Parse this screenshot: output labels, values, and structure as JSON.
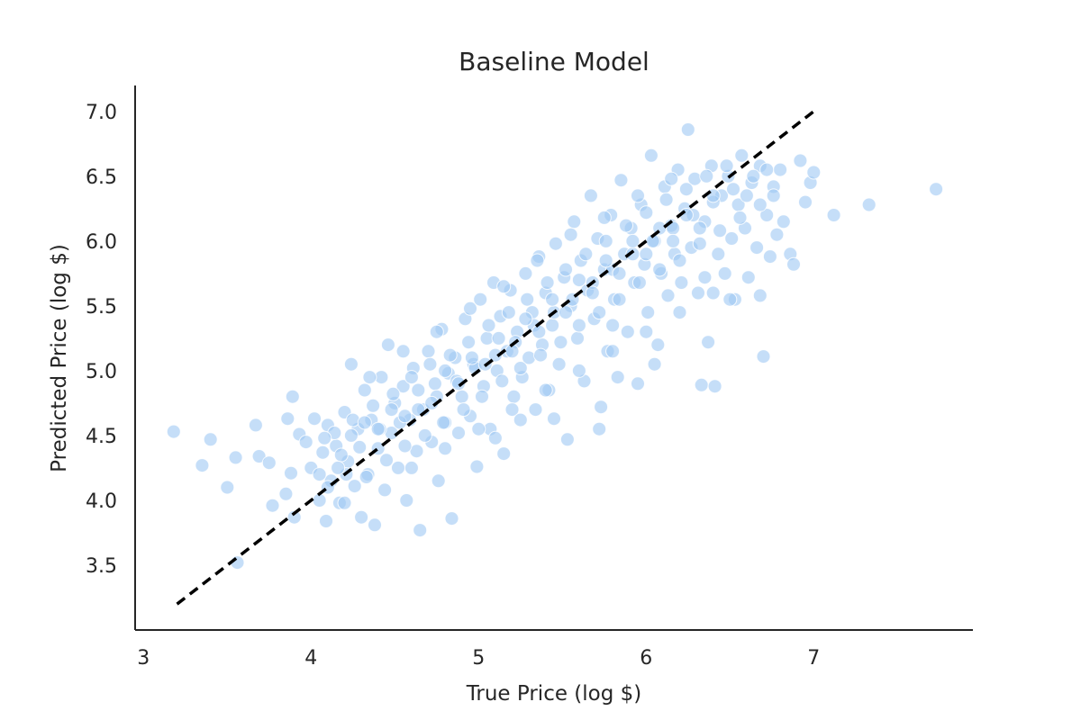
{
  "chart_data": {
    "type": "scatter",
    "title": "Baseline Model",
    "xlabel": "True Price (log $)",
    "ylabel": "Predicted Price (log $)",
    "xlim": [
      2.95,
      7.95
    ],
    "ylim": [
      3.0,
      7.2
    ],
    "xticks": [
      3,
      4,
      5,
      6,
      7
    ],
    "xtick_labels": [
      "3",
      "4",
      "5",
      "6",
      "7"
    ],
    "yticks": [
      3.5,
      4.0,
      4.5,
      5.0,
      5.5,
      6.0,
      6.5,
      7.0
    ],
    "ytick_labels": [
      "3.5",
      "4.0",
      "4.5",
      "5.0",
      "5.5",
      "6.0",
      "6.5",
      "7.0"
    ],
    "grid": false,
    "reference_line": {
      "style": "dashed",
      "color": "#000000",
      "x": [
        3.2,
        7.0
      ],
      "y": [
        3.2,
        7.0
      ]
    },
    "series": [
      {
        "color": "#9fc8f4",
        "points": [
          [
            3.18,
            4.53
          ],
          [
            3.35,
            4.27
          ],
          [
            3.4,
            4.47
          ],
          [
            3.5,
            4.1
          ],
          [
            3.55,
            4.33
          ],
          [
            3.56,
            3.52
          ],
          [
            3.67,
            4.58
          ],
          [
            3.69,
            4.34
          ],
          [
            3.75,
            4.29
          ],
          [
            3.77,
            3.96
          ],
          [
            3.85,
            4.05
          ],
          [
            3.86,
            4.63
          ],
          [
            3.88,
            4.21
          ],
          [
            3.89,
            4.8
          ],
          [
            3.9,
            3.87
          ],
          [
            3.93,
            4.51
          ],
          [
            3.97,
            4.45
          ],
          [
            4.0,
            4.25
          ],
          [
            4.02,
            4.63
          ],
          [
            4.05,
            4.0
          ],
          [
            4.07,
            4.37
          ],
          [
            4.09,
            3.84
          ],
          [
            4.1,
            4.58
          ],
          [
            4.12,
            4.15
          ],
          [
            4.15,
            4.42
          ],
          [
            4.17,
            3.98
          ],
          [
            4.2,
            4.68
          ],
          [
            4.22,
            4.3
          ],
          [
            4.24,
            5.05
          ],
          [
            4.26,
            4.11
          ],
          [
            4.28,
            4.55
          ],
          [
            4.3,
            3.87
          ],
          [
            4.32,
            4.85
          ],
          [
            4.34,
            4.2
          ],
          [
            4.36,
            4.62
          ],
          [
            4.38,
            3.81
          ],
          [
            4.4,
            4.4
          ],
          [
            4.42,
            4.95
          ],
          [
            4.44,
            4.08
          ],
          [
            4.46,
            5.2
          ],
          [
            4.48,
            4.52
          ],
          [
            4.5,
            4.75
          ],
          [
            4.52,
            4.25
          ],
          [
            4.55,
            4.88
          ],
          [
            4.57,
            4.0
          ],
          [
            4.59,
            4.62
          ],
          [
            4.61,
            5.02
          ],
          [
            4.63,
            4.38
          ],
          [
            4.65,
            3.77
          ],
          [
            4.67,
            4.7
          ],
          [
            4.7,
            5.15
          ],
          [
            4.72,
            4.45
          ],
          [
            4.74,
            4.9
          ],
          [
            4.76,
            4.15
          ],
          [
            4.78,
            5.32
          ],
          [
            4.8,
            4.6
          ],
          [
            4.82,
            4.98
          ],
          [
            4.84,
            3.86
          ],
          [
            4.86,
            5.1
          ],
          [
            4.88,
            4.52
          ],
          [
            4.9,
            4.8
          ],
          [
            4.92,
            5.4
          ],
          [
            4.95,
            4.65
          ],
          [
            4.97,
            5.05
          ],
          [
            4.99,
            4.26
          ],
          [
            5.01,
            5.55
          ],
          [
            5.03,
            4.88
          ],
          [
            5.05,
            5.25
          ],
          [
            5.07,
            4.55
          ],
          [
            5.09,
            5.68
          ],
          [
            5.11,
            5.0
          ],
          [
            5.13,
            5.42
          ],
          [
            5.15,
            4.36
          ],
          [
            5.17,
            5.15
          ],
          [
            5.19,
            5.62
          ],
          [
            5.21,
            4.8
          ],
          [
            5.23,
            5.3
          ],
          [
            5.26,
            4.95
          ],
          [
            5.28,
            5.75
          ],
          [
            5.3,
            5.1
          ],
          [
            5.32,
            5.45
          ],
          [
            5.34,
            4.7
          ],
          [
            5.36,
            5.88
          ],
          [
            5.38,
            5.2
          ],
          [
            5.4,
            5.6
          ],
          [
            5.42,
            4.85
          ],
          [
            5.44,
            5.35
          ],
          [
            5.46,
            5.98
          ],
          [
            5.48,
            5.05
          ],
          [
            5.51,
            5.72
          ],
          [
            5.53,
            4.47
          ],
          [
            5.55,
            5.5
          ],
          [
            5.57,
            6.15
          ],
          [
            5.59,
            5.25
          ],
          [
            5.61,
            5.85
          ],
          [
            5.63,
            4.92
          ],
          [
            5.65,
            5.62
          ],
          [
            5.67,
            6.35
          ],
          [
            5.69,
            5.4
          ],
          [
            5.71,
            6.02
          ],
          [
            5.73,
            4.72
          ],
          [
            5.75,
            5.78
          ],
          [
            5.77,
            5.15
          ],
          [
            5.79,
            6.2
          ],
          [
            5.81,
            5.55
          ],
          [
            5.83,
            4.95
          ],
          [
            5.85,
            6.47
          ],
          [
            5.87,
            5.9
          ],
          [
            5.89,
            5.3
          ],
          [
            5.91,
            6.1
          ],
          [
            5.93,
            5.68
          ],
          [
            5.95,
            4.9
          ],
          [
            5.97,
            6.28
          ],
          [
            5.99,
            5.82
          ],
          [
            6.01,
            5.45
          ],
          [
            6.03,
            6.66
          ],
          [
            6.05,
            6.0
          ],
          [
            6.07,
            5.2
          ],
          [
            6.09,
            5.75
          ],
          [
            6.11,
            6.42
          ],
          [
            6.13,
            5.58
          ],
          [
            6.15,
            6.12
          ],
          [
            6.17,
            5.9
          ],
          [
            6.19,
            6.55
          ],
          [
            6.21,
            5.68
          ],
          [
            6.23,
            6.25
          ],
          [
            6.25,
            6.86
          ],
          [
            6.27,
            5.95
          ],
          [
            6.29,
            6.48
          ],
          [
            6.31,
            5.6
          ],
          [
            6.33,
            4.89
          ],
          [
            6.35,
            6.15
          ],
          [
            6.37,
            5.22
          ],
          [
            6.39,
            6.58
          ],
          [
            6.41,
            4.88
          ],
          [
            6.43,
            5.9
          ],
          [
            6.45,
            6.35
          ],
          [
            6.47,
            5.75
          ],
          [
            6.49,
            6.5
          ],
          [
            6.51,
            6.02
          ],
          [
            6.53,
            5.55
          ],
          [
            6.55,
            6.28
          ],
          [
            6.57,
            6.66
          ],
          [
            6.59,
            6.1
          ],
          [
            6.61,
            5.72
          ],
          [
            6.63,
            6.45
          ],
          [
            6.66,
            5.95
          ],
          [
            6.68,
            6.58
          ],
          [
            6.7,
            5.11
          ],
          [
            6.72,
            6.2
          ],
          [
            6.74,
            5.88
          ],
          [
            6.76,
            6.42
          ],
          [
            6.78,
            6.05
          ],
          [
            6.8,
            6.55
          ],
          [
            6.82,
            6.15
          ],
          [
            6.86,
            5.9
          ],
          [
            6.88,
            5.82
          ],
          [
            6.92,
            6.62
          ],
          [
            6.95,
            6.3
          ],
          [
            6.98,
            6.45
          ],
          [
            7.0,
            6.53
          ],
          [
            7.12,
            6.2
          ],
          [
            7.33,
            6.28
          ],
          [
            7.73,
            6.4
          ],
          [
            4.05,
            4.2
          ],
          [
            4.1,
            4.1
          ],
          [
            4.14,
            4.52
          ],
          [
            4.18,
            4.35
          ],
          [
            4.21,
            4.2
          ],
          [
            4.25,
            4.62
          ],
          [
            4.29,
            4.41
          ],
          [
            4.33,
            4.18
          ],
          [
            4.37,
            4.73
          ],
          [
            4.41,
            4.55
          ],
          [
            4.45,
            4.31
          ],
          [
            4.49,
            4.82
          ],
          [
            4.53,
            4.6
          ],
          [
            4.56,
            4.42
          ],
          [
            4.6,
            4.95
          ],
          [
            4.64,
            4.7
          ],
          [
            4.68,
            4.5
          ],
          [
            4.71,
            5.05
          ],
          [
            4.75,
            4.8
          ],
          [
            4.79,
            4.6
          ],
          [
            4.83,
            5.12
          ],
          [
            4.87,
            4.92
          ],
          [
            4.91,
            4.7
          ],
          [
            4.94,
            5.22
          ],
          [
            4.98,
            5.02
          ],
          [
            5.02,
            4.8
          ],
          [
            5.06,
            5.35
          ],
          [
            5.1,
            5.12
          ],
          [
            5.14,
            4.92
          ],
          [
            5.18,
            5.45
          ],
          [
            5.22,
            5.22
          ],
          [
            5.25,
            5.02
          ],
          [
            5.29,
            5.55
          ],
          [
            5.33,
            5.35
          ],
          [
            5.37,
            5.12
          ],
          [
            5.41,
            5.68
          ],
          [
            5.45,
            5.45
          ],
          [
            5.49,
            5.22
          ],
          [
            5.52,
            5.78
          ],
          [
            5.56,
            5.55
          ],
          [
            5.6,
            5.35
          ],
          [
            5.64,
            5.9
          ],
          [
            5.68,
            5.68
          ],
          [
            5.72,
            5.45
          ],
          [
            5.76,
            6.0
          ],
          [
            5.8,
            5.78
          ],
          [
            5.84,
            5.55
          ],
          [
            5.88,
            6.12
          ],
          [
            5.92,
            5.9
          ],
          [
            5.96,
            5.68
          ],
          [
            6.0,
            6.22
          ],
          [
            6.04,
            6.0
          ],
          [
            6.08,
            5.78
          ],
          [
            6.12,
            6.32
          ],
          [
            6.16,
            6.1
          ],
          [
            6.2,
            5.85
          ],
          [
            6.24,
            6.4
          ],
          [
            6.28,
            6.2
          ],
          [
            6.32,
            5.98
          ],
          [
            6.36,
            6.5
          ],
          [
            6.4,
            6.3
          ],
          [
            6.44,
            6.08
          ],
          [
            6.48,
            6.58
          ],
          [
            6.52,
            6.4
          ],
          [
            6.56,
            6.18
          ],
          [
            6.6,
            6.35
          ],
          [
            6.64,
            6.5
          ],
          [
            6.68,
            6.28
          ],
          [
            6.72,
            6.55
          ],
          [
            6.76,
            6.35
          ],
          [
            4.08,
            4.48
          ],
          [
            4.16,
            4.25
          ],
          [
            4.24,
            4.5
          ],
          [
            4.32,
            4.6
          ],
          [
            4.4,
            4.55
          ],
          [
            4.48,
            4.7
          ],
          [
            4.56,
            4.65
          ],
          [
            4.64,
            4.85
          ],
          [
            4.72,
            4.75
          ],
          [
            4.8,
            5.0
          ],
          [
            4.88,
            4.9
          ],
          [
            4.96,
            5.1
          ],
          [
            5.04,
            5.05
          ],
          [
            5.12,
            5.25
          ],
          [
            5.2,
            5.15
          ],
          [
            5.28,
            5.4
          ],
          [
            5.36,
            5.3
          ],
          [
            5.44,
            5.55
          ],
          [
            5.52,
            5.45
          ],
          [
            5.6,
            5.7
          ],
          [
            5.68,
            5.6
          ],
          [
            5.76,
            5.85
          ],
          [
            5.84,
            5.75
          ],
          [
            5.92,
            6.0
          ],
          [
            6.0,
            5.9
          ],
          [
            6.08,
            6.1
          ],
          [
            6.16,
            6.0
          ],
          [
            6.24,
            6.2
          ],
          [
            6.32,
            6.1
          ],
          [
            6.4,
            6.35
          ],
          [
            4.35,
            4.95
          ],
          [
            4.55,
            5.15
          ],
          [
            4.75,
            5.3
          ],
          [
            4.95,
            5.48
          ],
          [
            5.15,
            5.65
          ],
          [
            5.35,
            5.85
          ],
          [
            5.55,
            6.05
          ],
          [
            5.75,
            6.18
          ],
          [
            5.95,
            6.35
          ],
          [
            6.15,
            6.48
          ],
          [
            4.6,
            4.25
          ],
          [
            4.8,
            4.4
          ],
          [
            5.0,
            4.55
          ],
          [
            5.2,
            4.7
          ],
          [
            5.4,
            4.85
          ],
          [
            5.6,
            5.0
          ],
          [
            5.8,
            5.15
          ],
          [
            6.0,
            5.3
          ],
          [
            6.2,
            5.45
          ],
          [
            6.4,
            5.6
          ],
          [
            5.72,
            4.55
          ],
          [
            5.45,
            4.63
          ],
          [
            5.8,
            5.35
          ],
          [
            6.05,
            5.05
          ],
          [
            6.35,
            5.72
          ],
          [
            6.5,
            5.55
          ],
          [
            6.68,
            5.58
          ],
          [
            5.25,
            4.62
          ],
          [
            5.1,
            4.48
          ],
          [
            4.2,
            3.98
          ]
        ]
      }
    ]
  }
}
